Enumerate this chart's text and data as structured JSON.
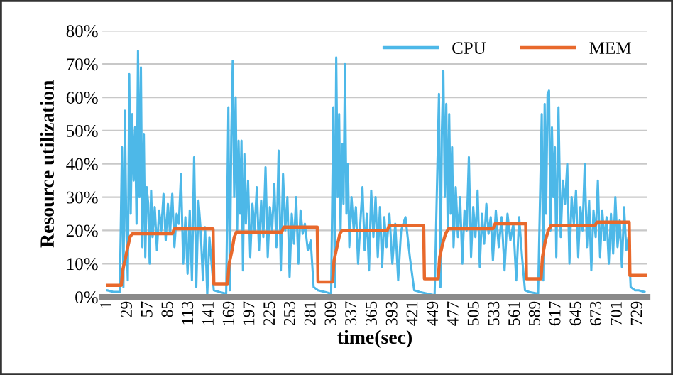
{
  "chart_data": {
    "type": "line",
    "xlabel": "time(sec)",
    "ylabel": "Resource utilization",
    "xlim": [
      -6,
      742
    ],
    "xticks": [
      1,
      29,
      57,
      85,
      113,
      141,
      169,
      197,
      225,
      253,
      281,
      309,
      337,
      365,
      393,
      421,
      449,
      477,
      505,
      533,
      561,
      589,
      617,
      645,
      673,
      701,
      729
    ],
    "ylim": [
      0,
      80
    ],
    "yticks": [
      {
        "value": 0,
        "label": "0%"
      },
      {
        "value": 10,
        "label": "10%"
      },
      {
        "value": 20,
        "label": "20%"
      },
      {
        "value": 30,
        "label": "30%"
      },
      {
        "value": 40,
        "label": "40%"
      },
      {
        "value": 50,
        "label": "50%"
      },
      {
        "value": 60,
        "label": "60%"
      },
      {
        "value": 70,
        "label": "70%"
      },
      {
        "value": 80,
        "label": "80%"
      }
    ],
    "grid": "y",
    "legend": "top right",
    "marker": "none",
    "line_style": "solid",
    "series": [
      {
        "name": "CPU",
        "color": "#4db8e8",
        "x": [
          1,
          10,
          18,
          21,
          23,
          25,
          27,
          29,
          31,
          33,
          35,
          37,
          39,
          41,
          43,
          45,
          47,
          49,
          51,
          53,
          55,
          57,
          59,
          61,
          63,
          66,
          69,
          72,
          75,
          78,
          81,
          84,
          87,
          90,
          93,
          96,
          99,
          102,
          105,
          108,
          111,
          114,
          117,
          120,
          123,
          126,
          129,
          132,
          135,
          138,
          141,
          144,
          147,
          155,
          164,
          167,
          169,
          171,
          173,
          175,
          177,
          179,
          181,
          183,
          185,
          187,
          189,
          191,
          194,
          197,
          200,
          203,
          206,
          209,
          212,
          215,
          218,
          221,
          224,
          227,
          230,
          233,
          236,
          239,
          242,
          245,
          248,
          251,
          254,
          257,
          260,
          263,
          266,
          269,
          272,
          276,
          280,
          284,
          290,
          300,
          308,
          311,
          313,
          315,
          317,
          319,
          321,
          323,
          325,
          327,
          329,
          331,
          333,
          336,
          339,
          342,
          345,
          348,
          351,
          354,
          357,
          360,
          363,
          366,
          369,
          372,
          375,
          378,
          381,
          384,
          388,
          392,
          396,
          400,
          404,
          410,
          416,
          422,
          430,
          440,
          450,
          456,
          458,
          460,
          462,
          464,
          466,
          468,
          470,
          472,
          474,
          476,
          479,
          482,
          485,
          488,
          491,
          494,
          497,
          500,
          503,
          506,
          509,
          512,
          515,
          518,
          521,
          524,
          527,
          530,
          534,
          538,
          542,
          546,
          550,
          554,
          558,
          562,
          566,
          570,
          574,
          580,
          592,
          597,
          599,
          601,
          603,
          605,
          607,
          609,
          611,
          613,
          615,
          617,
          620,
          623,
          626,
          629,
          632,
          635,
          638,
          641,
          644,
          647,
          650,
          653,
          656,
          659,
          662,
          665,
          668,
          671,
          674,
          677,
          680,
          683,
          686,
          689,
          692,
          695,
          698,
          701,
          704,
          707,
          710,
          713,
          716,
          719,
          725,
          730,
          738
        ],
        "values": [
          2,
          1.5,
          1.5,
          45,
          3,
          56,
          20,
          5,
          67,
          25,
          55,
          35,
          51,
          22,
          74,
          30,
          69,
          15,
          49,
          12,
          33,
          28,
          10,
          32,
          18,
          27,
          14,
          26,
          20,
          31,
          17,
          28,
          19,
          31,
          15,
          25,
          22,
          37,
          10,
          24,
          7,
          26,
          5,
          42,
          3,
          29,
          20,
          5,
          21,
          0.5,
          18,
          10,
          2,
          1.5,
          1,
          57,
          2,
          48,
          71,
          30,
          60,
          20,
          47,
          25,
          47,
          8,
          43,
          22,
          35,
          12,
          28,
          20,
          33,
          14,
          29,
          18,
          39,
          12,
          27,
          20,
          34,
          15,
          44,
          8,
          37,
          20,
          30,
          6,
          25,
          16,
          30,
          10,
          26,
          19,
          22,
          14,
          17,
          3,
          2,
          1.5,
          1,
          57,
          3,
          72,
          30,
          55,
          20,
          46,
          28,
          70,
          25,
          40,
          15,
          30,
          20,
          27,
          10,
          22,
          33,
          14,
          25,
          8,
          32,
          18,
          30,
          12,
          27,
          9,
          24,
          15,
          25,
          10,
          22,
          5,
          20,
          24,
          12,
          2,
          1.5,
          1,
          0.5,
          61,
          3,
          50,
          68,
          30,
          58,
          20,
          55,
          25,
          45,
          15,
          33,
          18,
          30,
          10,
          26,
          20,
          42,
          12,
          27,
          18,
          32,
          9,
          25,
          16,
          28,
          19,
          24,
          11,
          26,
          15,
          24,
          8,
          25,
          17,
          22,
          5,
          24,
          12,
          2,
          1.5,
          1,
          55,
          5,
          58,
          25,
          61,
          62,
          20,
          51,
          30,
          45,
          12,
          57,
          18,
          35,
          28,
          40,
          10,
          30,
          22,
          32,
          12,
          27,
          20,
          40,
          15,
          29,
          8,
          26,
          18,
          35,
          12,
          26,
          17,
          24,
          10,
          25,
          13,
          30,
          15,
          23,
          9,
          27,
          14,
          18,
          3,
          2,
          2,
          1.5
        ]
      },
      {
        "name": "MEM",
        "color": "#e8692c",
        "x": [
          1,
          20,
          22,
          26,
          29,
          32,
          35,
          90,
          93,
          146,
          147,
          166,
          168,
          172,
          175,
          178,
          240,
          243,
          289,
          290,
          310,
          312,
          316,
          320,
          323,
          385,
          388,
          435,
          436,
          455,
          457,
          461,
          465,
          469,
          530,
          533,
          575,
          576,
          596,
          598,
          602,
          606,
          610,
          670,
          673,
          717,
          718,
          740
        ],
        "values": [
          3.5,
          3.5,
          8,
          12,
          15,
          18,
          19,
          19,
          20.5,
          20.5,
          4,
          4,
          10,
          14,
          18,
          19.5,
          19.5,
          21,
          21,
          4.5,
          4.5,
          11,
          15,
          19,
          20,
          20,
          21.5,
          21.5,
          5.5,
          5.5,
          12,
          16,
          19,
          20.5,
          20.5,
          22,
          22,
          5.5,
          5.5,
          12,
          17,
          20,
          21.5,
          21.5,
          22.5,
          22.5,
          6.5,
          6.5
        ]
      }
    ]
  }
}
